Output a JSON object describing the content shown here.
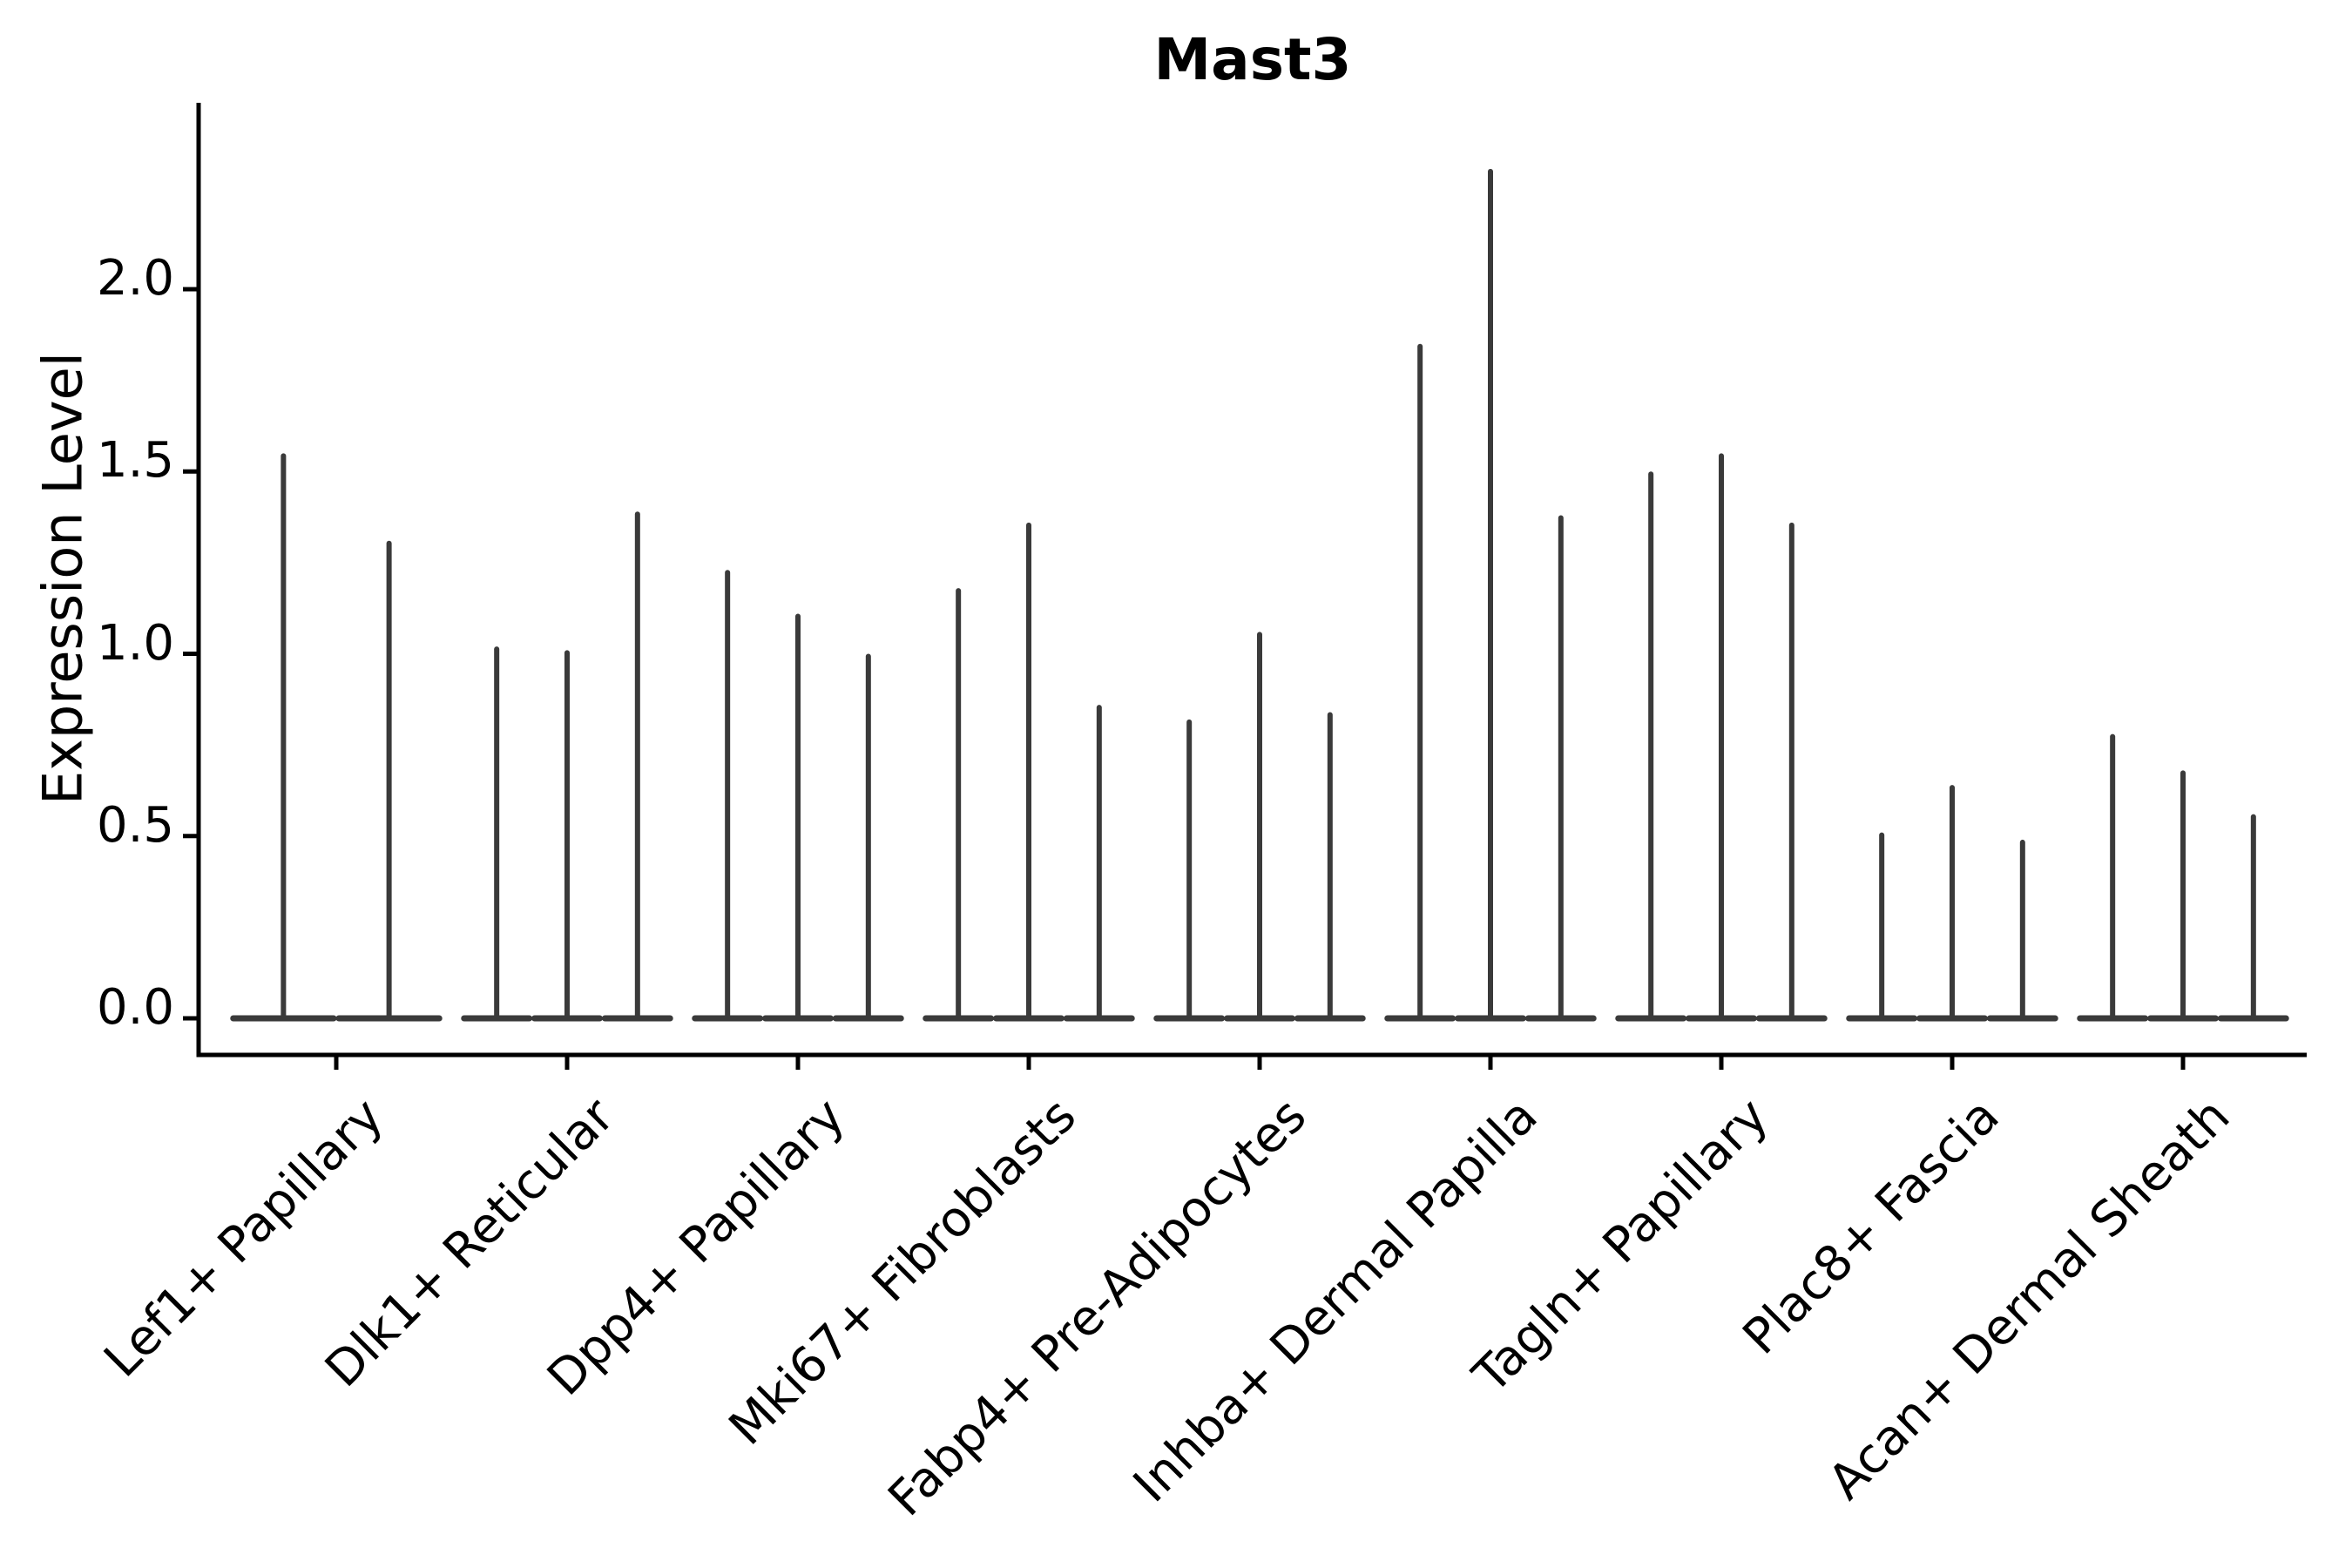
{
  "chart_data": {
    "type": "violin",
    "title": "Mast3",
    "ylabel": "Expression Level",
    "xlabel": "",
    "ytick_labels": [
      "0.0",
      "0.5",
      "1.0",
      "1.5",
      "2.0"
    ],
    "ylim": [
      -0.09,
      2.51
    ],
    "grid": false,
    "legend": "none",
    "categories": [
      "Lef1+ Papillary",
      "Dlk1+ Reticular",
      "Dpp4+ Papillary",
      "Mki67+ Fibroblasts",
      "Fabp4+ Pre-Adipocytes",
      "Inhba+ Dermal Papilla",
      "Tagln+ Papillary",
      "Plac8+ Fascia",
      "Acan+ Dermal Sheath"
    ],
    "groups": [
      {
        "category": "Lef1+ Papillary",
        "violin_peaks": [
          1.55,
          1.31
        ]
      },
      {
        "category": "Dlk1+ Reticular",
        "violin_peaks": [
          1.02,
          1.01,
          1.39
        ]
      },
      {
        "category": "Dpp4+ Papillary",
        "violin_peaks": [
          1.23,
          1.11,
          1.0
        ]
      },
      {
        "category": "Mki67+ Fibroblasts",
        "violin_peaks": [
          1.18,
          1.36,
          0.86
        ]
      },
      {
        "category": "Fabp4+ Pre-Adipocytes",
        "violin_peaks": [
          0.82,
          1.06,
          0.84
        ]
      },
      {
        "category": "Inhba+ Dermal Papilla",
        "violin_peaks": [
          1.85,
          2.33,
          1.38
        ]
      },
      {
        "category": "Tagln+ Papillary",
        "violin_peaks": [
          1.5,
          1.55,
          1.36
        ]
      },
      {
        "category": "Plac8+ Fascia",
        "violin_peaks": [
          0.51,
          0.64,
          0.49
        ]
      },
      {
        "category": "Acan+ Dermal Sheath",
        "violin_peaks": [
          0.78,
          0.68,
          0.56
        ]
      }
    ],
    "colors": {
      "violin": "#3a3a3a",
      "axis": "#000000",
      "text": "#000000",
      "background": "#ffffff"
    }
  }
}
